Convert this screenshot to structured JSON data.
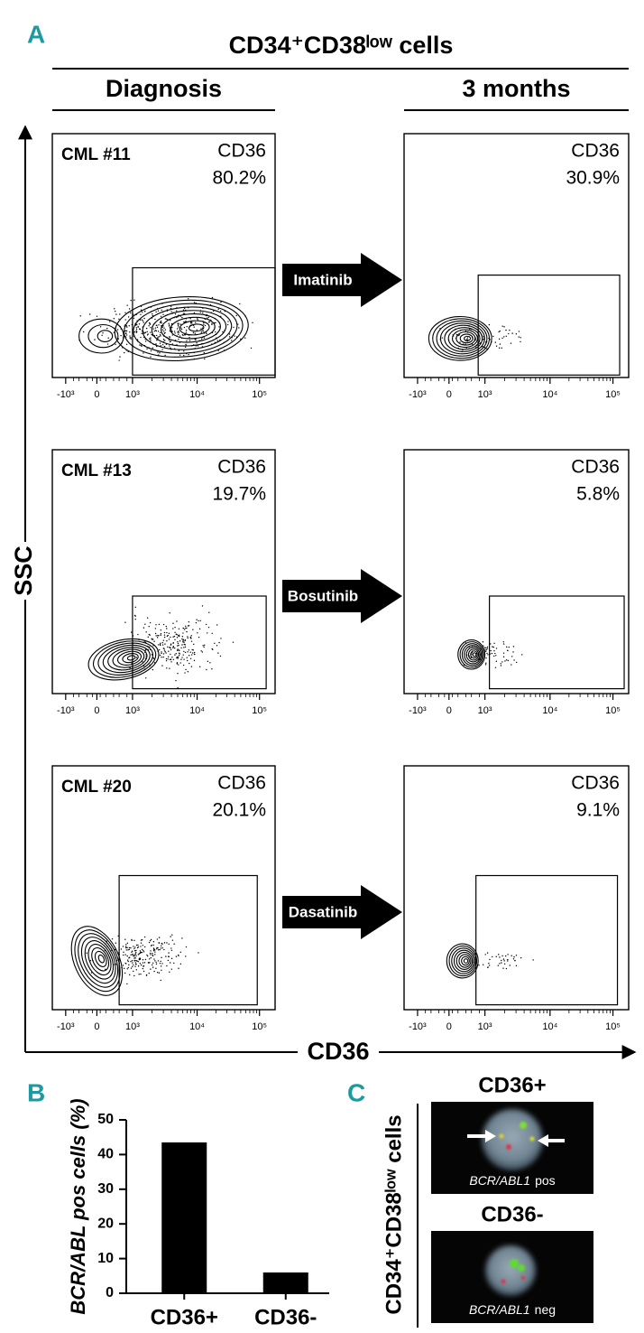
{
  "panel_a": {
    "label": "A",
    "title": "CD34⁺CD38ˡᵒʷ cells",
    "columns": [
      "Diagnosis",
      "3 months"
    ],
    "y_axis_label": "SSC",
    "x_axis_label": "CD36",
    "x_tick_labels": [
      "-10³",
      "0",
      "10³",
      "10⁴",
      "10⁵"
    ],
    "marker": "CD36",
    "rows": [
      {
        "patient": "CML #11",
        "drug": "Imatinib",
        "diagnosis": "80.2%",
        "three_months": "30.9%"
      },
      {
        "patient": "CML #13",
        "drug": "Bosutinib",
        "diagnosis": "19.7%",
        "three_months": "5.8%"
      },
      {
        "patient": "CML #20",
        "drug": "Dasatinib",
        "diagnosis": "20.1%",
        "three_months": "9.1%"
      }
    ]
  },
  "panel_b": {
    "label": "B"
  },
  "chart_data": {
    "type": "bar",
    "ylabel": "BCR/ABL pos cells (%)",
    "categories": [
      "CD36+",
      "CD36-"
    ],
    "values": [
      43.5,
      6
    ],
    "color": "#000000",
    "ylim": [
      0,
      50
    ],
    "yticks": [
      0,
      10,
      20,
      30,
      40,
      50
    ]
  },
  "panel_c": {
    "label": "C",
    "side_label": "CD34⁺CD38ˡᵒʷ cells",
    "images": [
      {
        "title": "CD36+",
        "gene": "BCR/ABL1",
        "status": "pos"
      },
      {
        "title": "CD36-",
        "gene": "BCR/ABL1",
        "status": "neg"
      }
    ]
  }
}
